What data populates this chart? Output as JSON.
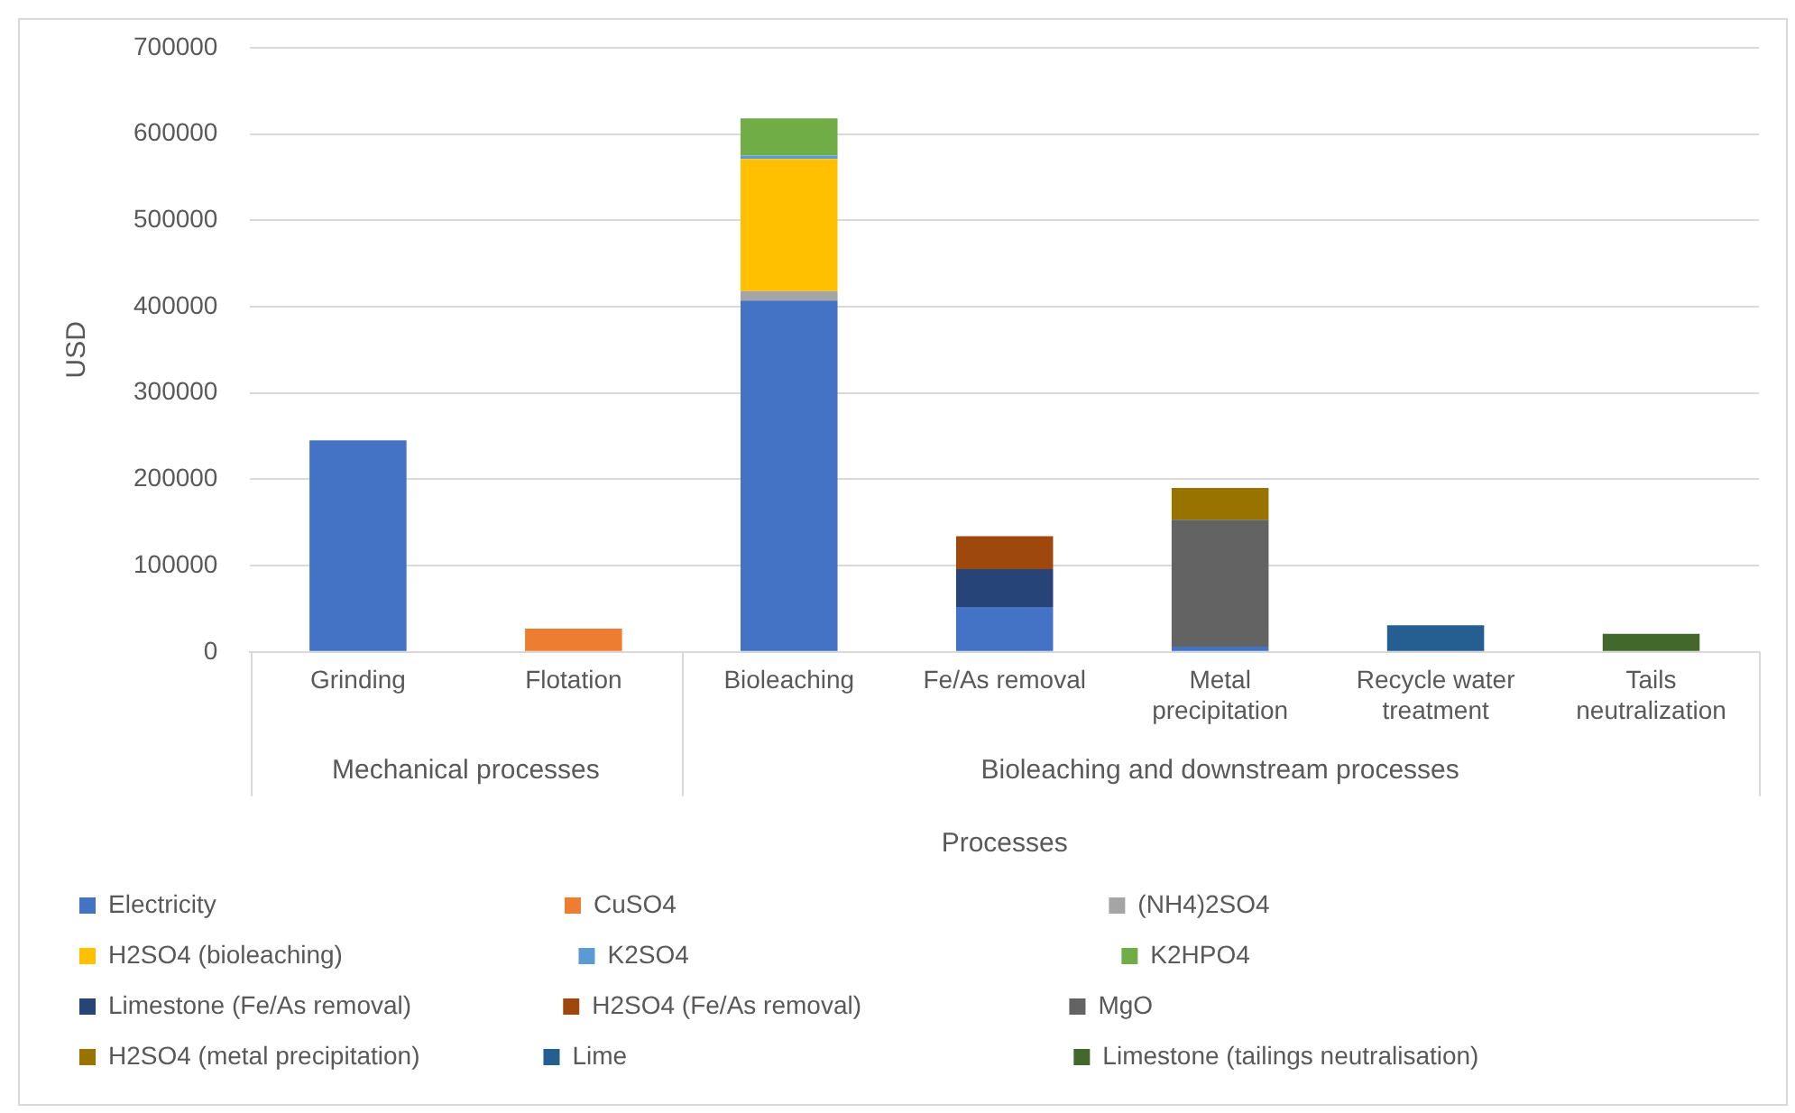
{
  "chart_data": {
    "type": "bar",
    "stacked": true,
    "xlabel": "Processes",
    "ylabel": "USD",
    "categories": [
      "Grinding",
      "Flotation",
      "Bioleaching",
      "Fe/As removal",
      "Metal precipitation",
      "Recycle water treatment",
      "Tails neutralization"
    ],
    "annotations": [
      "Mechanical processes",
      "Bioleaching and downstream processes"
    ],
    "series": [
      {
        "name": "Electricity",
        "color": "#4472c4",
        "values": [
          245000,
          null,
          407000,
          52000,
          6000,
          null,
          null
        ]
      },
      {
        "name": "CuSO4",
        "color": "#ed7d31",
        "values": [
          null,
          27000,
          null,
          null,
          null,
          null,
          null
        ]
      },
      {
        "name": "(NH4)2SO4",
        "color": "#a5a5a5",
        "values": [
          null,
          null,
          11000,
          null,
          null,
          null,
          null
        ]
      },
      {
        "name": "H2SO4 (bioleaching)",
        "color": "#ffc000",
        "values": [
          null,
          null,
          153000,
          null,
          null,
          null,
          null
        ]
      },
      {
        "name": "K2SO4",
        "color": "#5b9bd5",
        "values": [
          null,
          null,
          4000,
          null,
          null,
          null,
          null
        ]
      },
      {
        "name": "K2HPO4",
        "color": "#70ad47",
        "values": [
          null,
          null,
          43000,
          null,
          null,
          null,
          null
        ]
      },
      {
        "name": "Limestone (Fe/As removal)",
        "color": "#264478",
        "values": [
          null,
          null,
          null,
          44000,
          null,
          null,
          null
        ]
      },
      {
        "name": "H2SO4 (Fe/As removal)",
        "color": "#9e480e",
        "values": [
          null,
          null,
          null,
          38000,
          null,
          null,
          null
        ]
      },
      {
        "name": "MgO",
        "color": "#636363",
        "values": [
          null,
          null,
          null,
          null,
          147000,
          null,
          null
        ]
      },
      {
        "name": "H2SO4 (metal precipitation)",
        "color": "#997300",
        "values": [
          null,
          null,
          null,
          null,
          37000,
          null,
          null
        ]
      },
      {
        "name": "Lime",
        "color": "#255e91",
        "values": [
          null,
          null,
          null,
          null,
          null,
          31000,
          null
        ]
      },
      {
        "name": "Limestone (tailings neutralisation)",
        "color": "#43682b",
        "values": [
          null,
          null,
          null,
          null,
          null,
          null,
          21000
        ]
      }
    ],
    "ylim": [
      0,
      700000
    ],
    "yticks": [
      0,
      100000,
      200000,
      300000,
      400000,
      500000,
      600000,
      700000
    ],
    "grid": "y",
    "legend": "bottom"
  }
}
